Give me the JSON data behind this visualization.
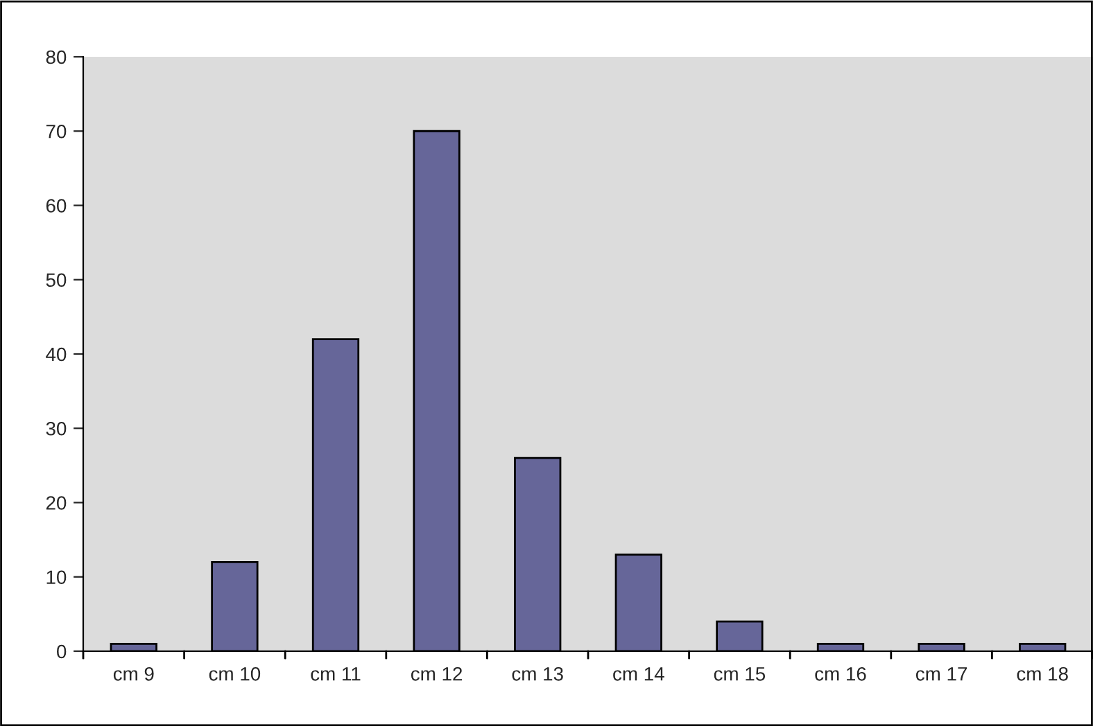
{
  "chart_data": {
    "type": "bar",
    "categories": [
      "cm 9",
      "cm 10",
      "cm 11",
      "cm 12",
      "cm 13",
      "cm 14",
      "cm 15",
      "cm 16",
      "cm 17",
      "cm 18"
    ],
    "values": [
      1,
      12,
      42,
      70,
      26,
      13,
      4,
      1,
      1,
      1
    ],
    "color": "#666699",
    "ylim": [
      0,
      80
    ],
    "yticks": [
      0,
      10,
      20,
      30,
      40,
      50,
      60,
      70,
      80
    ],
    "grid": false
  }
}
